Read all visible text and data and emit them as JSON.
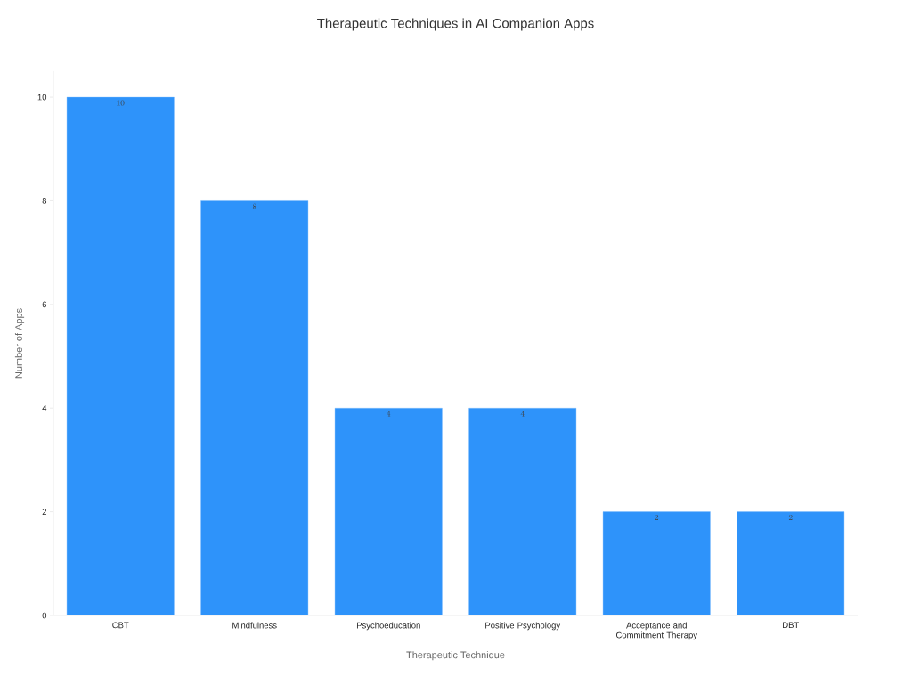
{
  "chart_data": {
    "type": "bar",
    "title": "Therapeutic Techniques in AI Companion Apps",
    "xlabel": "Therapeutic Technique",
    "ylabel": "Number of Apps",
    "categories": [
      "CBT",
      "Mindfulness",
      "Psychoeducation",
      "Positive Psychology",
      "Acceptance and Commitment Therapy",
      "DBT"
    ],
    "values": [
      10,
      8,
      4,
      4,
      2,
      2
    ],
    "color": "#2e93fa",
    "ylim": [
      0,
      10.5
    ],
    "yticks": [
      0,
      2,
      4,
      6,
      8,
      10
    ],
    "grid": false,
    "data_labels": true
  }
}
